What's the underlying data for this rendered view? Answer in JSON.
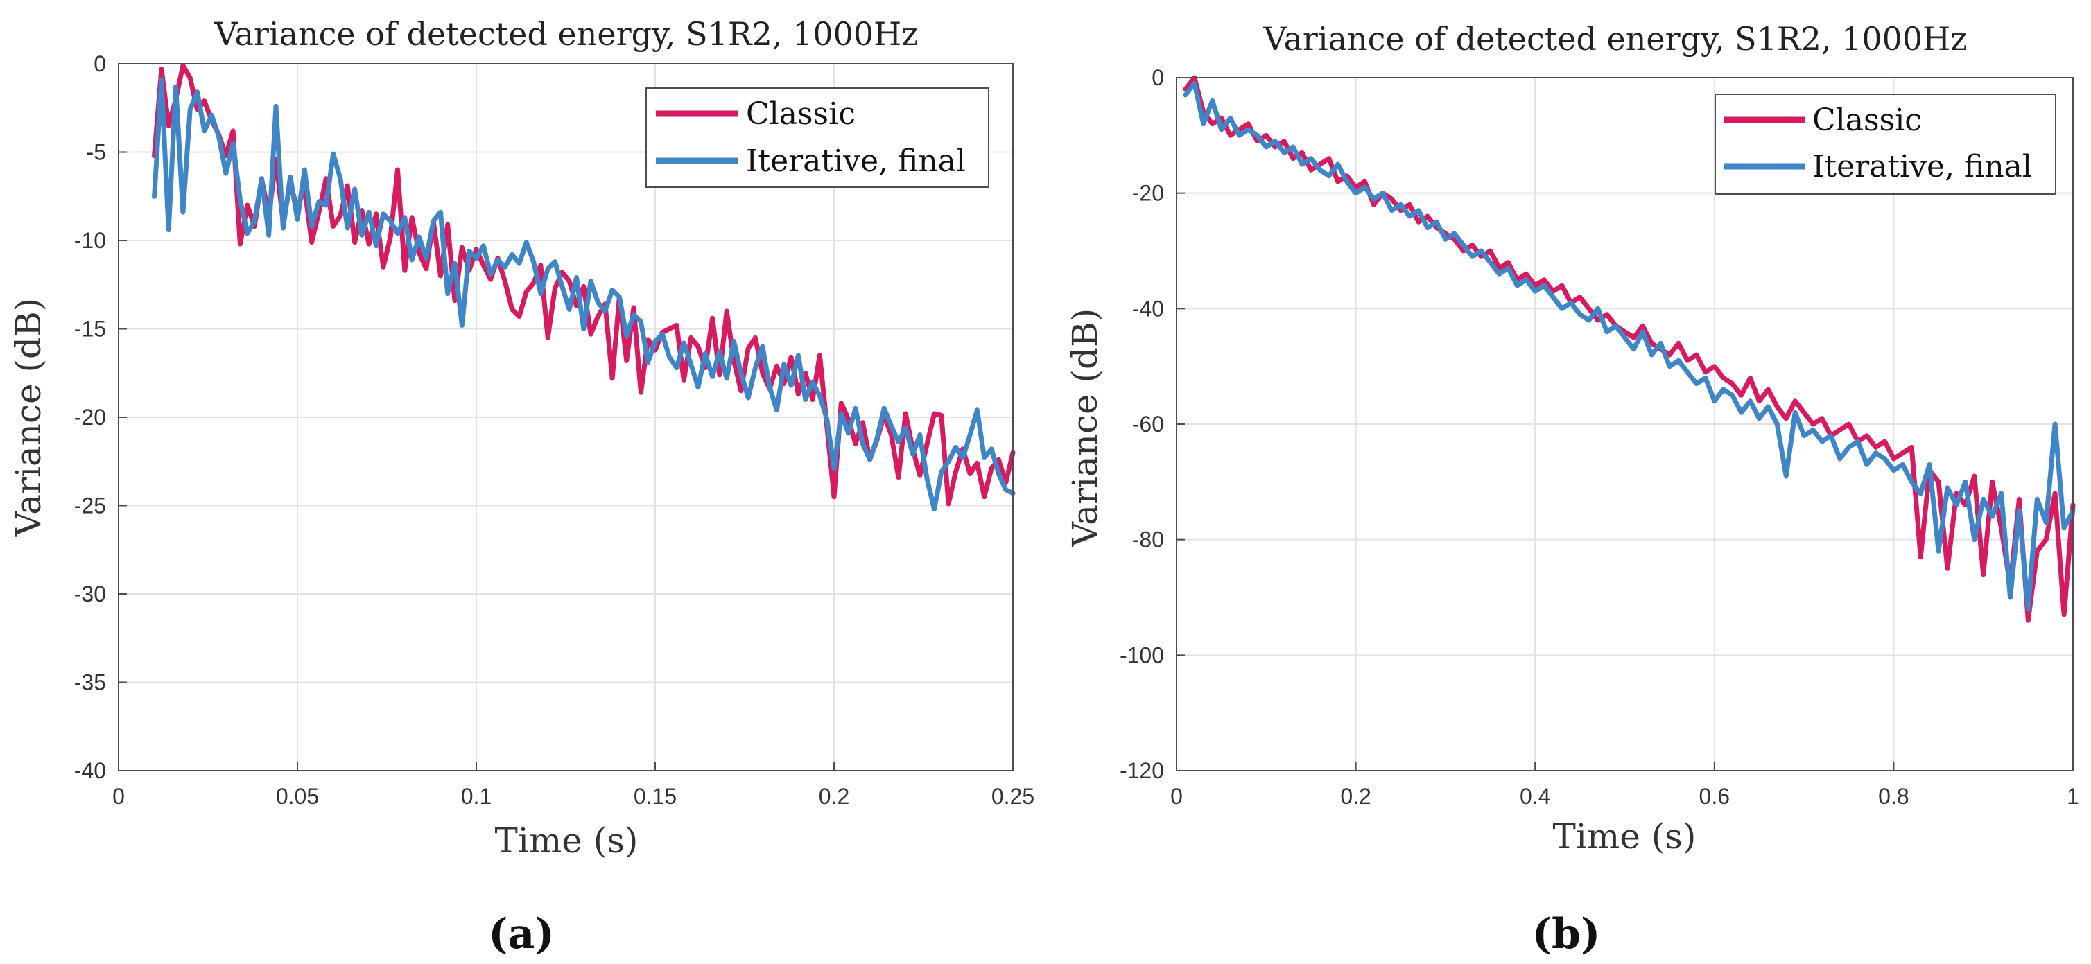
{
  "colors": {
    "classic": "#D81B60",
    "iterative": "#3F86C9",
    "grid": "#E2E2E2",
    "axis": "#4D4D4D"
  },
  "chart_data": [
    {
      "type": "line",
      "panel_label": "(a)",
      "title": "Variance of detected energy, S1R2, 1000Hz",
      "xlabel": "Time (s)",
      "ylabel": "Variance (dB)",
      "xlim": [
        0,
        0.25
      ],
      "ylim": [
        -40,
        0
      ],
      "xticks": [
        0,
        0.05,
        0.1,
        0.15,
        0.2,
        0.25
      ],
      "xtick_labels": [
        "0",
        "0.05",
        "0.1",
        "0.15",
        "0.2",
        "0.25"
      ],
      "yticks": [
        -40,
        -35,
        -30,
        -25,
        -20,
        -15,
        -10,
        -5,
        0
      ],
      "ytick_labels": [
        "-40",
        "-35",
        "-30",
        "-25",
        "-20",
        "-15",
        "-10",
        "-5",
        "0"
      ],
      "grid": true,
      "legend": "top-right",
      "series": [
        {
          "name": "Classic",
          "x": [
            0.01,
            0.012,
            0.014,
            0.016,
            0.018,
            0.02,
            0.022,
            0.024,
            0.026,
            0.028,
            0.03,
            0.032,
            0.034,
            0.036,
            0.038,
            0.04,
            0.042,
            0.044,
            0.046,
            0.048,
            0.05,
            0.052,
            0.054,
            0.056,
            0.058,
            0.06,
            0.062,
            0.064,
            0.066,
            0.068,
            0.07,
            0.072,
            0.074,
            0.076,
            0.078,
            0.08,
            0.082,
            0.084,
            0.086,
            0.088,
            0.09,
            0.092,
            0.094,
            0.096,
            0.098,
            0.1,
            0.102,
            0.104,
            0.106,
            0.108,
            0.11,
            0.112,
            0.114,
            0.116,
            0.118,
            0.12,
            0.122,
            0.124,
            0.126,
            0.128,
            0.13,
            0.132,
            0.134,
            0.136,
            0.138,
            0.14,
            0.142,
            0.144,
            0.146,
            0.148,
            0.15,
            0.152,
            0.154,
            0.156,
            0.158,
            0.16,
            0.162,
            0.164,
            0.166,
            0.168,
            0.17,
            0.172,
            0.174,
            0.176,
            0.178,
            0.18,
            0.182,
            0.184,
            0.186,
            0.188,
            0.19,
            0.192,
            0.194,
            0.196,
            0.198,
            0.2,
            0.202,
            0.204,
            0.206,
            0.208,
            0.21,
            0.212,
            0.214,
            0.216,
            0.218,
            0.22,
            0.222,
            0.224,
            0.226,
            0.228,
            0.23,
            0.232,
            0.234,
            0.236,
            0.238,
            0.24,
            0.242,
            0.244,
            0.246,
            0.248,
            0.25
          ],
          "y": [
            -5.2,
            -0.3,
            -3.5,
            -2.0,
            -0.1,
            -0.8,
            -2.6,
            -2.1,
            -3.2,
            -4.0,
            -5.2,
            -3.8,
            -10.2,
            -8.0,
            -9.2,
            -6.5,
            -8.6,
            -5.4,
            -9.0,
            -6.8,
            -8.2,
            -7.0,
            -10.1,
            -8.4,
            -6.5,
            -9.2,
            -8.6,
            -6.9,
            -10.1,
            -8.3,
            -10.2,
            -8.5,
            -11.5,
            -9.8,
            -6.0,
            -11.7,
            -8.7,
            -10.7,
            -11.6,
            -8.9,
            -12.0,
            -9.1,
            -13.4,
            -10.4,
            -11.7,
            -10.5,
            -11.4,
            -12.2,
            -11.0,
            -12.3,
            -13.9,
            -14.3,
            -12.9,
            -12.4,
            -11.4,
            -15.5,
            -12.7,
            -11.8,
            -12.3,
            -13.7,
            -12.6,
            -15.3,
            -14.3,
            -13.6,
            -17.8,
            -13.2,
            -16.8,
            -13.8,
            -18.6,
            -15.6,
            -16.2,
            -15.2,
            -15.0,
            -14.8,
            -17.9,
            -15.5,
            -16.0,
            -17.2,
            -14.4,
            -17.6,
            -14.0,
            -16.8,
            -18.5,
            -16.1,
            -15.5,
            -17.5,
            -18.4,
            -17.1,
            -18.1,
            -16.6,
            -18.7,
            -17.5,
            -19.0,
            -16.5,
            -20.5,
            -24.5,
            -19.2,
            -20.1,
            -21.5,
            -20.3,
            -22.4,
            -21.3,
            -19.9,
            -21.0,
            -23.4,
            -19.8,
            -21.8,
            -23.3,
            -21.5,
            -19.8,
            -19.9,
            -24.9,
            -23.1,
            -21.8,
            -23.2,
            -22.6,
            -24.5,
            -22.9,
            -22.4,
            -23.7,
            -22.0
          ]
        },
        {
          "name": "Iterative, final",
          "x": [
            0.01,
            0.012,
            0.014,
            0.016,
            0.018,
            0.02,
            0.022,
            0.024,
            0.026,
            0.028,
            0.03,
            0.032,
            0.034,
            0.036,
            0.038,
            0.04,
            0.042,
            0.044,
            0.046,
            0.048,
            0.05,
            0.052,
            0.054,
            0.056,
            0.058,
            0.06,
            0.062,
            0.064,
            0.066,
            0.068,
            0.07,
            0.072,
            0.074,
            0.076,
            0.078,
            0.08,
            0.082,
            0.084,
            0.086,
            0.088,
            0.09,
            0.092,
            0.094,
            0.096,
            0.098,
            0.1,
            0.102,
            0.104,
            0.106,
            0.108,
            0.11,
            0.112,
            0.114,
            0.116,
            0.118,
            0.12,
            0.122,
            0.124,
            0.126,
            0.128,
            0.13,
            0.132,
            0.134,
            0.136,
            0.138,
            0.14,
            0.142,
            0.144,
            0.146,
            0.148,
            0.15,
            0.152,
            0.154,
            0.156,
            0.158,
            0.16,
            0.162,
            0.164,
            0.166,
            0.168,
            0.17,
            0.172,
            0.174,
            0.176,
            0.178,
            0.18,
            0.182,
            0.184,
            0.186,
            0.188,
            0.19,
            0.192,
            0.194,
            0.196,
            0.198,
            0.2,
            0.202,
            0.204,
            0.206,
            0.208,
            0.21,
            0.212,
            0.214,
            0.216,
            0.218,
            0.22,
            0.222,
            0.224,
            0.226,
            0.228,
            0.23,
            0.232,
            0.234,
            0.236,
            0.238,
            0.24,
            0.242,
            0.244,
            0.246,
            0.248,
            0.25
          ],
          "y": [
            -7.5,
            -0.9,
            -9.4,
            -1.3,
            -8.4,
            -2.6,
            -1.6,
            -3.8,
            -2.9,
            -4.1,
            -6.2,
            -4.5,
            -7.7,
            -9.6,
            -8.9,
            -6.5,
            -9.7,
            -2.4,
            -9.3,
            -6.4,
            -8.8,
            -6.0,
            -9.2,
            -7.8,
            -8.0,
            -5.1,
            -6.5,
            -9.3,
            -7.1,
            -9.7,
            -8.4,
            -10.3,
            -8.5,
            -8.9,
            -9.6,
            -8.7,
            -11.1,
            -9.8,
            -11.0,
            -8.9,
            -8.4,
            -13.0,
            -11.3,
            -14.8,
            -10.6,
            -11.0,
            -10.3,
            -11.9,
            -11.1,
            -11.5,
            -10.8,
            -11.3,
            -10.1,
            -11.2,
            -13.0,
            -11.6,
            -11.2,
            -12.6,
            -13.9,
            -12.1,
            -15.0,
            -12.3,
            -13.5,
            -14.0,
            -12.8,
            -13.2,
            -15.4,
            -14.2,
            -14.6,
            -16.9,
            -15.7,
            -15.3,
            -16.6,
            -17.2,
            -15.8,
            -17.0,
            -18.3,
            -16.4,
            -17.7,
            -16.3,
            -17.8,
            -15.7,
            -17.5,
            -18.9,
            -17.2,
            -16.0,
            -18.3,
            -19.6,
            -17.0,
            -18.2,
            -16.5,
            -19.0,
            -18.0,
            -18.8,
            -20.1,
            -22.9,
            -19.8,
            -20.9,
            -19.5,
            -21.5,
            -22.4,
            -21.2,
            -19.5,
            -20.5,
            -21.4,
            -20.6,
            -22.1,
            -21.0,
            -23.5,
            -25.2,
            -23.1,
            -22.5,
            -21.7,
            -22.3,
            -21.0,
            -19.6,
            -22.3,
            -21.8,
            -23.2,
            -24.1,
            -24.3
          ]
        }
      ]
    },
    {
      "type": "line",
      "panel_label": "(b)",
      "title": "Variance of detected energy, S1R2, 1000Hz",
      "xlabel": "Time (s)",
      "ylabel": "Variance (dB)",
      "xlim": [
        0,
        1
      ],
      "ylim": [
        -120,
        0
      ],
      "xticks": [
        0,
        0.2,
        0.4,
        0.6,
        0.8,
        1
      ],
      "xtick_labels": [
        "0",
        "0.2",
        "0.4",
        "0.6",
        "0.8",
        "1"
      ],
      "yticks": [
        -120,
        -100,
        -80,
        -60,
        -40,
        -20,
        0
      ],
      "ytick_labels": [
        "-120",
        "-100",
        "-80",
        "-60",
        "-40",
        "-20",
        "0"
      ],
      "grid": true,
      "legend": "top-right",
      "series": [
        {
          "name": "Classic",
          "x": [
            0.01,
            0.02,
            0.03,
            0.04,
            0.05,
            0.06,
            0.07,
            0.08,
            0.09,
            0.1,
            0.11,
            0.12,
            0.13,
            0.14,
            0.15,
            0.16,
            0.17,
            0.18,
            0.19,
            0.2,
            0.21,
            0.22,
            0.23,
            0.24,
            0.25,
            0.26,
            0.27,
            0.28,
            0.29,
            0.3,
            0.31,
            0.32,
            0.33,
            0.34,
            0.35,
            0.36,
            0.37,
            0.38,
            0.39,
            0.4,
            0.41,
            0.42,
            0.43,
            0.44,
            0.45,
            0.46,
            0.47,
            0.48,
            0.49,
            0.5,
            0.51,
            0.52,
            0.53,
            0.54,
            0.55,
            0.56,
            0.57,
            0.58,
            0.59,
            0.6,
            0.61,
            0.62,
            0.63,
            0.64,
            0.65,
            0.66,
            0.67,
            0.68,
            0.69,
            0.7,
            0.71,
            0.72,
            0.73,
            0.74,
            0.75,
            0.76,
            0.77,
            0.78,
            0.79,
            0.8,
            0.81,
            0.82,
            0.83,
            0.84,
            0.85,
            0.86,
            0.87,
            0.88,
            0.89,
            0.9,
            0.91,
            0.92,
            0.93,
            0.94,
            0.95,
            0.96,
            0.97,
            0.98,
            0.99,
            1.0
          ],
          "y": [
            -2,
            0,
            -6,
            -8,
            -7,
            -10,
            -9,
            -8,
            -11,
            -10,
            -12,
            -11,
            -14,
            -13,
            -16,
            -15,
            -14,
            -18,
            -17,
            -19,
            -18,
            -22,
            -20,
            -21,
            -23,
            -22,
            -25,
            -24,
            -26,
            -27,
            -28,
            -30,
            -29,
            -31,
            -30,
            -33,
            -32,
            -35,
            -34,
            -36,
            -35,
            -37,
            -36,
            -39,
            -38,
            -40,
            -42,
            -41,
            -43,
            -44,
            -45,
            -43,
            -46,
            -47,
            -48,
            -46,
            -49,
            -48,
            -51,
            -50,
            -52,
            -53,
            -55,
            -52,
            -56,
            -54,
            -57,
            -59,
            -56,
            -58,
            -60,
            -59,
            -62,
            -61,
            -60,
            -63,
            -62,
            -64,
            -63,
            -66,
            -65,
            -64,
            -83,
            -68,
            -70,
            -85,
            -72,
            -74,
            -69,
            -86,
            -70,
            -78,
            -88,
            -73,
            -94,
            -82,
            -80,
            -72,
            -93,
            -74
          ]
        },
        {
          "name": "Iterative, final",
          "x": [
            0.01,
            0.02,
            0.03,
            0.04,
            0.05,
            0.06,
            0.07,
            0.08,
            0.09,
            0.1,
            0.11,
            0.12,
            0.13,
            0.14,
            0.15,
            0.16,
            0.17,
            0.18,
            0.19,
            0.2,
            0.21,
            0.22,
            0.23,
            0.24,
            0.25,
            0.26,
            0.27,
            0.28,
            0.29,
            0.3,
            0.31,
            0.32,
            0.33,
            0.34,
            0.35,
            0.36,
            0.37,
            0.38,
            0.39,
            0.4,
            0.41,
            0.42,
            0.43,
            0.44,
            0.45,
            0.46,
            0.47,
            0.48,
            0.49,
            0.5,
            0.51,
            0.52,
            0.53,
            0.54,
            0.55,
            0.56,
            0.57,
            0.58,
            0.59,
            0.6,
            0.61,
            0.62,
            0.63,
            0.64,
            0.65,
            0.66,
            0.67,
            0.68,
            0.69,
            0.7,
            0.71,
            0.72,
            0.73,
            0.74,
            0.75,
            0.76,
            0.77,
            0.78,
            0.79,
            0.8,
            0.81,
            0.82,
            0.83,
            0.84,
            0.85,
            0.86,
            0.87,
            0.88,
            0.89,
            0.9,
            0.91,
            0.92,
            0.93,
            0.94,
            0.95,
            0.96,
            0.97,
            0.98,
            0.99,
            1.0
          ],
          "y": [
            -3,
            -1,
            -8,
            -4,
            -9,
            -7,
            -10,
            -9,
            -10,
            -12,
            -11,
            -13,
            -12,
            -15,
            -14,
            -16,
            -17,
            -15,
            -18,
            -20,
            -19,
            -21,
            -20,
            -23,
            -22,
            -24,
            -23,
            -26,
            -25,
            -28,
            -27,
            -29,
            -31,
            -30,
            -32,
            -34,
            -33,
            -36,
            -35,
            -37,
            -36,
            -38,
            -40,
            -39,
            -41,
            -42,
            -40,
            -44,
            -43,
            -45,
            -47,
            -44,
            -48,
            -46,
            -50,
            -49,
            -51,
            -53,
            -52,
            -56,
            -54,
            -55,
            -58,
            -56,
            -59,
            -57,
            -60,
            -69,
            -58,
            -62,
            -61,
            -63,
            -62,
            -66,
            -64,
            -63,
            -67,
            -65,
            -66,
            -68,
            -67,
            -70,
            -72,
            -67,
            -82,
            -71,
            -74,
            -70,
            -80,
            -73,
            -76,
            -72,
            -90,
            -75,
            -92,
            -73,
            -77,
            -60,
            -78,
            -75
          ]
        }
      ]
    }
  ]
}
